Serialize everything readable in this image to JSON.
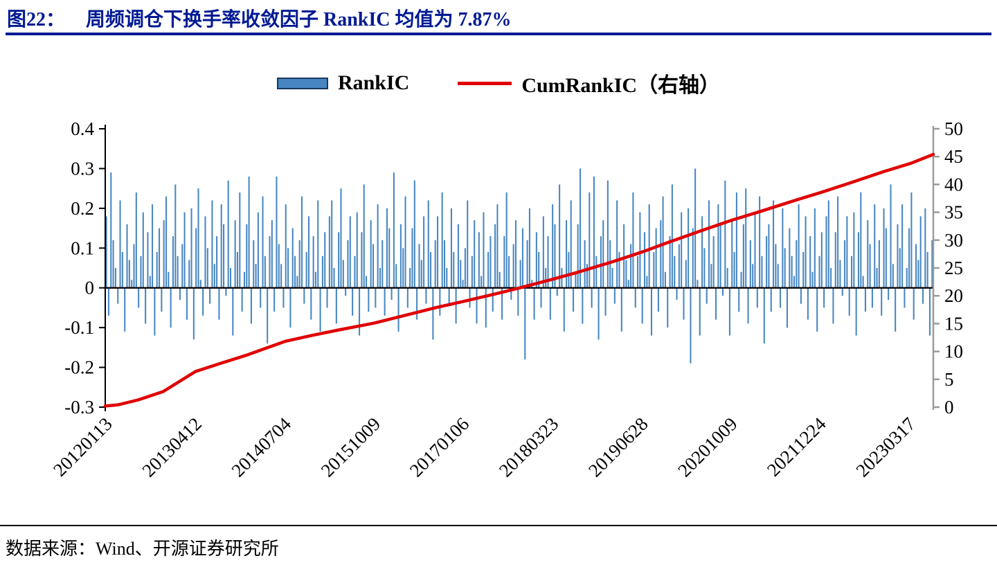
{
  "figure": {
    "title_prefix": "图22：",
    "title": "周频调仓下换手率收敛因子 RankIC 均值为 7.87%",
    "source": "数据来源：Wind、开源证券研究所"
  },
  "legend": [
    {
      "label": "RankIC",
      "type": "bar",
      "color": "#4786C1",
      "border": "#17375E"
    },
    {
      "label": "CumRankIC（右轴）",
      "type": "line",
      "color": "#E00000"
    }
  ],
  "chart_data": {
    "type": "bar",
    "title": "周频调仓下换手率收敛因子 RankIC 均值为 7.87%",
    "annotations": {
      "rankic_mean": "7.87%"
    },
    "grid": false,
    "legend_position": "top-center",
    "left_axis": {
      "min": -0.3,
      "max": 0.4,
      "ticks": [
        {
          "label": "0.4",
          "value": 0.4
        },
        {
          "label": "0.3",
          "value": 0.3
        },
        {
          "label": "0.2",
          "value": 0.2
        },
        {
          "label": "0.1",
          "value": 0.1
        },
        {
          "label": "0",
          "value": 0
        },
        {
          "label": "-0.1",
          "value": -0.1
        },
        {
          "label": "-0.2",
          "value": -0.2
        },
        {
          "label": "-0.3",
          "value": -0.3
        }
      ]
    },
    "right_axis": {
      "min": 0,
      "max": 50,
      "ticks": [
        {
          "label": "50",
          "value": 50
        },
        {
          "label": "45",
          "value": 45
        },
        {
          "label": "40",
          "value": 40
        },
        {
          "label": "35",
          "value": 35
        },
        {
          "label": "30",
          "value": 30
        },
        {
          "label": "25",
          "value": 25
        },
        {
          "label": "20",
          "value": 20
        },
        {
          "label": "15",
          "value": 15
        },
        {
          "label": "10",
          "value": 10
        },
        {
          "label": "5",
          "value": 5
        },
        {
          "label": "0",
          "value": 0
        }
      ]
    },
    "x_ticks": [
      {
        "label": "20120113",
        "f": 0.003
      },
      {
        "label": "20130412",
        "f": 0.111
      },
      {
        "label": "20140704",
        "f": 0.219
      },
      {
        "label": "20151009",
        "f": 0.327
      },
      {
        "label": "20170106",
        "f": 0.434
      },
      {
        "label": "20180323",
        "f": 0.542
      },
      {
        "label": "20190628",
        "f": 0.65
      },
      {
        "label": "20201009",
        "f": 0.758
      },
      {
        "label": "20211224",
        "f": 0.865
      },
      {
        "label": "20230317",
        "f": 0.973
      }
    ],
    "series": [
      {
        "name": "RankIC",
        "type": "bar",
        "axis": "left",
        "color": "#4786C1",
        "values": [
          0.18,
          -0.07,
          0.29,
          0.12,
          0.05,
          -0.04,
          0.22,
          0.09,
          -0.11,
          0.16,
          0.07,
          0.02,
          0.11,
          0.24,
          -0.05,
          0.08,
          0.19,
          -0.09,
          0.14,
          0.03,
          0.21,
          -0.12,
          0.09,
          0.15,
          -0.06,
          0.17,
          0.23,
          0.04,
          -0.1,
          0.13,
          0.26,
          0.08,
          -0.03,
          0.11,
          0.19,
          -0.08,
          0.07,
          0.2,
          -0.13,
          0.15,
          0.25,
          0.02,
          -0.07,
          0.18,
          0.1,
          -0.04,
          0.22,
          0.06,
          0.13,
          -0.08,
          0.21,
          0.16,
          -0.02,
          0.27,
          0.05,
          -0.12,
          0.17,
          0.09,
          0.24,
          -0.06,
          0.04,
          0.16,
          0.28,
          -0.09,
          0.12,
          0.06,
          0.19,
          -0.05,
          0.23,
          0.08,
          -0.14,
          0.13,
          0.17,
          -0.06,
          0.28,
          0.11,
          0.06,
          -0.05,
          0.21,
          0.1,
          -0.1,
          0.15,
          0.08,
          0.03,
          0.12,
          0.23,
          -0.04,
          0.09,
          0.18,
          -0.08,
          0.13,
          0.04,
          0.22,
          -0.11,
          0.08,
          0.14,
          -0.05,
          0.18,
          0.22,
          0.05,
          -0.09,
          0.14,
          0.25,
          0.07,
          -0.02,
          0.12,
          0.18,
          -0.07,
          0.08,
          0.19,
          -0.12,
          0.14,
          0.26,
          0.03,
          -0.06,
          0.17,
          0.11,
          -0.05,
          0.21,
          0.05,
          0.12,
          -0.07,
          0.2,
          0.15,
          -0.03,
          0.29,
          0.06,
          -0.11,
          0.16,
          0.1,
          0.23,
          -0.05,
          0.05,
          0.15,
          0.27,
          -0.08,
          0.11,
          0.07,
          0.18,
          -0.04,
          0.22,
          0.09,
          -0.13,
          0.12,
          0.18,
          -0.07,
          0.24,
          0.12,
          0.05,
          -0.04,
          0.2,
          0.09,
          -0.09,
          0.16,
          0.07,
          0.02,
          0.1,
          0.22,
          -0.05,
          0.08,
          0.17,
          -0.09,
          0.14,
          0.03,
          0.19,
          -0.1,
          0.09,
          0.13,
          -0.06,
          0.16,
          0.21,
          0.04,
          -0.08,
          0.13,
          0.24,
          0.08,
          -0.03,
          0.11,
          0.17,
          -0.07,
          0.07,
          0.15,
          -0.18,
          0.12,
          0.2,
          0.02,
          -0.08,
          0.14,
          0.09,
          -0.05,
          0.18,
          0.05,
          0.13,
          -0.08,
          0.21,
          0.16,
          -0.02,
          0.26,
          0.05,
          -0.11,
          0.17,
          0.09,
          0.22,
          -0.06,
          0.04,
          0.16,
          0.3,
          -0.09,
          0.12,
          0.06,
          0.24,
          -0.05,
          0.28,
          0.08,
          -0.13,
          0.13,
          0.17,
          -0.07,
          0.27,
          0.12,
          0.05,
          -0.04,
          0.22,
          0.09,
          -0.11,
          0.16,
          0.07,
          0.02,
          0.11,
          0.24,
          -0.05,
          0.08,
          0.19,
          -0.09,
          0.14,
          0.03,
          0.21,
          -0.12,
          0.09,
          0.15,
          -0.06,
          0.17,
          0.23,
          0.04,
          -0.1,
          0.13,
          0.26,
          0.08,
          -0.03,
          0.11,
          0.19,
          -0.08,
          0.07,
          0.2,
          -0.19,
          0.15,
          0.3,
          0.02,
          -0.12,
          0.18,
          0.1,
          -0.04,
          0.22,
          0.06,
          0.13,
          -0.08,
          0.21,
          0.16,
          -0.02,
          0.27,
          0.05,
          -0.12,
          0.17,
          0.09,
          0.24,
          -0.06,
          0.04,
          0.16,
          0.25,
          -0.09,
          0.12,
          0.06,
          0.19,
          -0.05,
          0.23,
          0.08,
          -0.14,
          0.13,
          0.16,
          -0.06,
          0.22,
          0.11,
          0.06,
          -0.05,
          0.2,
          0.1,
          -0.1,
          0.15,
          0.08,
          0.03,
          0.12,
          0.21,
          -0.04,
          0.09,
          0.18,
          -0.08,
          0.13,
          0.04,
          0.2,
          -0.11,
          0.08,
          0.14,
          -0.05,
          0.18,
          0.22,
          0.05,
          -0.09,
          0.14,
          0.23,
          0.07,
          -0.02,
          0.12,
          0.18,
          -0.07,
          0.08,
          0.19,
          -0.12,
          0.14,
          0.24,
          0.03,
          -0.06,
          0.17,
          0.11,
          -0.05,
          0.21,
          0.05,
          0.12,
          -0.07,
          0.2,
          0.15,
          -0.03,
          0.26,
          0.06,
          -0.11,
          0.16,
          0.1,
          0.21,
          -0.05,
          0.05,
          0.15,
          0.24,
          -0.08,
          0.11,
          0.07,
          0.18,
          -0.04,
          0.2,
          0.09,
          -0.12,
          0.12
        ]
      },
      {
        "name": "CumRankIC（右轴）",
        "type": "line",
        "axis": "right",
        "color": "#E00000",
        "points": [
          [
            0.0,
            0.2
          ],
          [
            0.015,
            0.4
          ],
          [
            0.04,
            1.3
          ],
          [
            0.07,
            2.8
          ],
          [
            0.109,
            6.4
          ],
          [
            0.14,
            7.9
          ],
          [
            0.17,
            9.3
          ],
          [
            0.217,
            11.8
          ],
          [
            0.25,
            12.9
          ],
          [
            0.28,
            13.8
          ],
          [
            0.325,
            15.1
          ],
          [
            0.36,
            16.4
          ],
          [
            0.4,
            17.9
          ],
          [
            0.433,
            19.0
          ],
          [
            0.47,
            20.3
          ],
          [
            0.5,
            21.4
          ],
          [
            0.541,
            23.0
          ],
          [
            0.57,
            24.2
          ],
          [
            0.61,
            26.0
          ],
          [
            0.649,
            27.9
          ],
          [
            0.68,
            29.6
          ],
          [
            0.72,
            31.7
          ],
          [
            0.757,
            33.6
          ],
          [
            0.79,
            35.1
          ],
          [
            0.83,
            37.0
          ],
          [
            0.865,
            38.6
          ],
          [
            0.9,
            40.3
          ],
          [
            0.94,
            42.3
          ],
          [
            0.973,
            43.8
          ],
          [
            1.0,
            45.4
          ]
        ]
      }
    ]
  }
}
